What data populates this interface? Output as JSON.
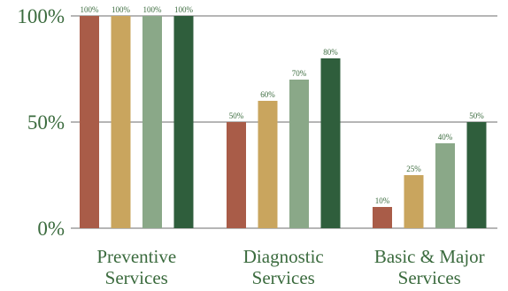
{
  "chart_data": {
    "type": "bar",
    "categories": [
      [
        "Preventive",
        "Services"
      ],
      [
        "Diagnostic",
        "Services"
      ],
      [
        "Basic & Major",
        "Services"
      ]
    ],
    "series": [
      {
        "values": [
          100,
          50,
          10
        ],
        "labels": [
          "100%",
          "50%",
          "10%"
        ],
        "color": "#a95c48"
      },
      {
        "values": [
          100,
          60,
          25
        ],
        "labels": [
          "100%",
          "60%",
          "25%"
        ],
        "color": "#c9a55e"
      },
      {
        "values": [
          100,
          70,
          40
        ],
        "labels": [
          "100%",
          "70%",
          "40%"
        ],
        "color": "#8aa888"
      },
      {
        "values": [
          100,
          80,
          50
        ],
        "labels": [
          "100%",
          "80%",
          "50%"
        ],
        "color": "#2f5e3c"
      }
    ],
    "ylim": [
      0,
      100
    ],
    "yticks": [
      0,
      50,
      100
    ],
    "ytick_labels": [
      "0%",
      "50%",
      "100%"
    ],
    "grid": true,
    "title": "",
    "xlabel": "",
    "ylabel": ""
  }
}
